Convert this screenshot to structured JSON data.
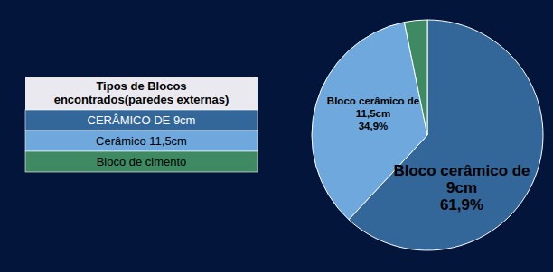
{
  "chart_data": {
    "type": "pie",
    "legend_title": "Tipos de Blocos encontrados(paredes externas)",
    "categories": [
      "CERÂMICO DE 9cm",
      "Cerâmico 11,5cm",
      "Bloco de cimento"
    ],
    "values": [
      61.9,
      34.9,
      3.2
    ],
    "colors": [
      "#336699",
      "#6fa8dc",
      "#3f8a62"
    ],
    "data_labels": true,
    "slice_labels": [
      "Bloco cerâmico de 9cm",
      "Bloco cerâmico de 11,5cm",
      null
    ],
    "value_labels": [
      "61,9%",
      "34,9%",
      null
    ],
    "legend": "left"
  }
}
